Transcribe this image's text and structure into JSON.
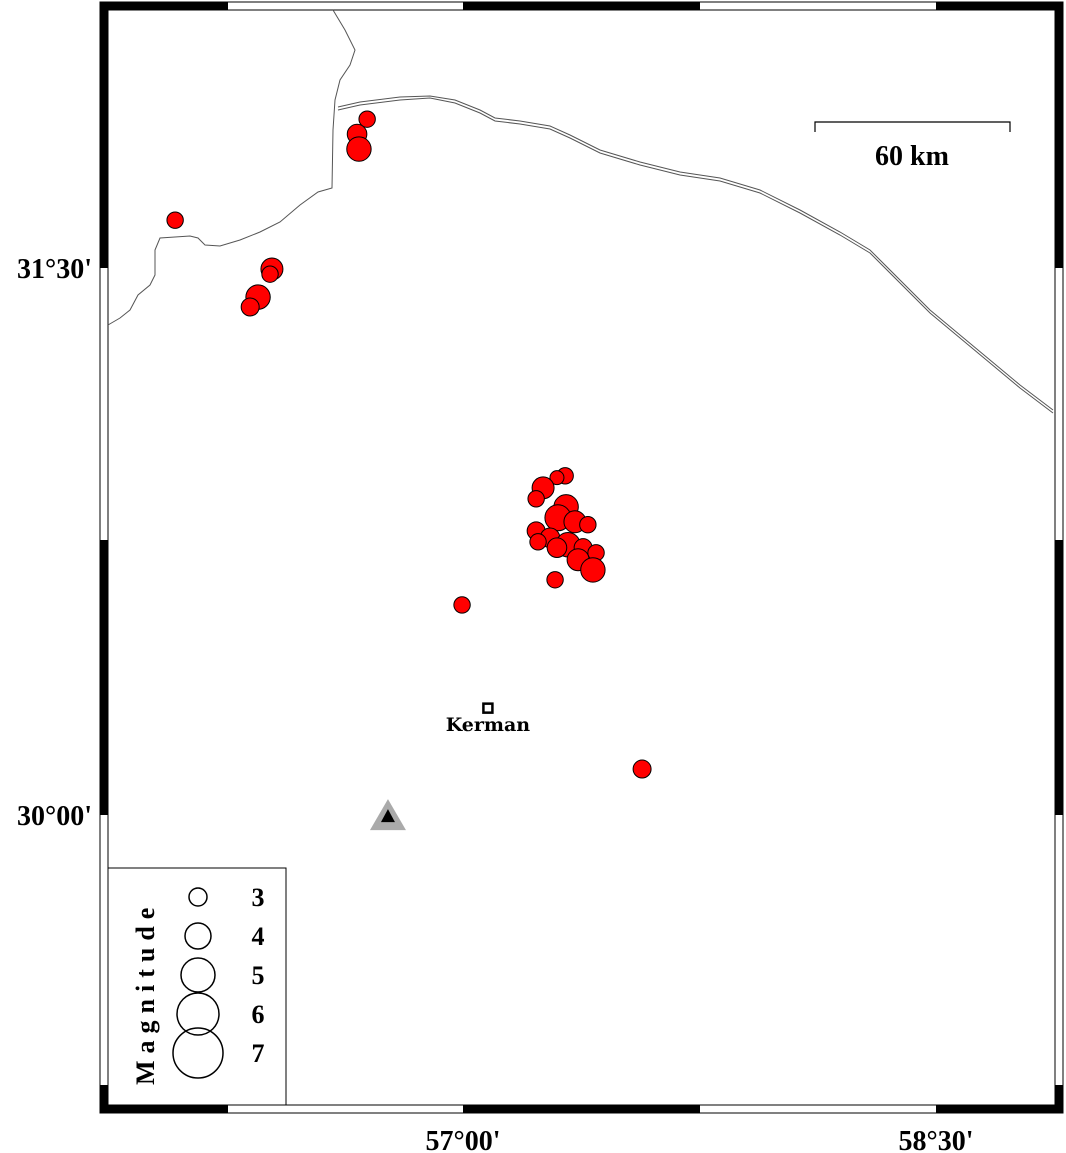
{
  "map": {
    "colors": {
      "event_fill": "#ff0000",
      "event_stroke": "#000000",
      "station_outer": "#aaaaaa",
      "station_inner": "#000000",
      "border": "#555555"
    },
    "axes": {
      "x_ticks": [
        {
          "value": 57.0,
          "label": "57°00'"
        },
        {
          "value": 58.5,
          "label": "58°30'"
        }
      ],
      "y_ticks": [
        {
          "value": 31.5,
          "label": "31°30'"
        },
        {
          "value": 30.0,
          "label": "30°00'"
        }
      ]
    },
    "scale_bar": {
      "label": "60 km"
    },
    "city": {
      "name": "Kerman",
      "lon": 57.079,
      "lat": 30.293,
      "icon": "square-city-icon"
    },
    "station": {
      "lon": 56.762,
      "lat": 29.997,
      "icon": "triangle-station-icon"
    },
    "legend": {
      "title": "Magnitude",
      "items": [
        {
          "mag": 3,
          "label": "3"
        },
        {
          "mag": 4,
          "label": "4"
        },
        {
          "mag": 5,
          "label": "5"
        },
        {
          "mag": 6,
          "label": "6"
        },
        {
          "mag": 7,
          "label": "7"
        }
      ]
    },
    "events": [
      {
        "lon": 56.087,
        "lat": 31.631,
        "mag": 2.8
      },
      {
        "lon": 56.696,
        "lat": 31.908,
        "mag": 2.8
      },
      {
        "lon": 56.664,
        "lat": 31.867,
        "mag": 3.2
      },
      {
        "lon": 56.67,
        "lat": 31.826,
        "mag": 3.8
      },
      {
        "lon": 56.394,
        "lat": 31.497,
        "mag": 3.5
      },
      {
        "lon": 56.388,
        "lat": 31.483,
        "mag": 2.8
      },
      {
        "lon": 56.35,
        "lat": 31.42,
        "mag": 3.8
      },
      {
        "lon": 56.325,
        "lat": 31.393,
        "mag": 3.0
      },
      {
        "lon": 56.997,
        "lat": 30.576,
        "mag": 2.8
      },
      {
        "lon": 57.568,
        "lat": 30.126,
        "mag": 3.0
      },
      {
        "lon": 57.324,
        "lat": 30.93,
        "mag": 2.8
      },
      {
        "lon": 57.298,
        "lat": 30.925,
        "mag": 2.5
      },
      {
        "lon": 57.254,
        "lat": 30.897,
        "mag": 3.5
      },
      {
        "lon": 57.232,
        "lat": 30.867,
        "mag": 2.8
      },
      {
        "lon": 57.327,
        "lat": 30.845,
        "mag": 3.8
      },
      {
        "lon": 57.301,
        "lat": 30.815,
        "mag": 4.0
      },
      {
        "lon": 57.355,
        "lat": 30.804,
        "mag": 3.5
      },
      {
        "lon": 57.396,
        "lat": 30.796,
        "mag": 2.8
      },
      {
        "lon": 57.232,
        "lat": 30.779,
        "mag": 3.0
      },
      {
        "lon": 57.276,
        "lat": 30.76,
        "mag": 3.2
      },
      {
        "lon": 57.238,
        "lat": 30.749,
        "mag": 2.8
      },
      {
        "lon": 57.333,
        "lat": 30.741,
        "mag": 3.8
      },
      {
        "lon": 57.298,
        "lat": 30.733,
        "mag": 3.2
      },
      {
        "lon": 57.381,
        "lat": 30.733,
        "mag": 3.0
      },
      {
        "lon": 57.422,
        "lat": 30.719,
        "mag": 2.8
      },
      {
        "lon": 57.365,
        "lat": 30.7,
        "mag": 3.5
      },
      {
        "lon": 57.412,
        "lat": 30.672,
        "mag": 3.8
      },
      {
        "lon": 57.292,
        "lat": 30.645,
        "mag": 2.8
      }
    ]
  }
}
